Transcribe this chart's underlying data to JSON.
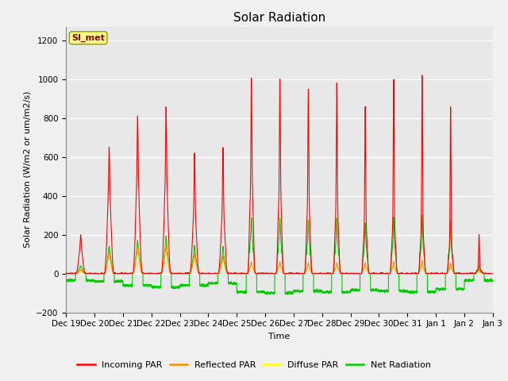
{
  "title": "Solar Radiation",
  "ylabel": "Solar Radiation (W/m2 or um/m2/s)",
  "xlabel": "Time",
  "ylim": [
    -200,
    1270
  ],
  "yticks": [
    -200,
    0,
    200,
    400,
    600,
    800,
    1000,
    1200
  ],
  "colors": {
    "incoming": "#FF0000",
    "reflected": "#FF8C00",
    "diffuse": "#FFFF00",
    "net": "#00CC00"
  },
  "legend_labels": [
    "Incoming PAR",
    "Reflected PAR",
    "Diffuse PAR",
    "Net Radiation"
  ],
  "station_label": "SI_met",
  "n_days": 15,
  "pts_per_day": 288,
  "day_peaks_incoming": [
    200,
    650,
    810,
    860,
    620,
    650,
    1010,
    1000,
    950,
    980,
    860,
    1000,
    1020,
    860,
    200
  ],
  "day_peaks_reflected": [
    20,
    110,
    140,
    150,
    100,
    90,
    60,
    60,
    55,
    55,
    55,
    60,
    65,
    55,
    20
  ],
  "day_peaks_diffuse": [
    15,
    100,
    130,
    140,
    90,
    85,
    50,
    50,
    45,
    45,
    45,
    50,
    55,
    45,
    15
  ],
  "day_peaks_net": [
    40,
    140,
    170,
    195,
    145,
    140,
    290,
    285,
    275,
    285,
    260,
    290,
    300,
    270,
    40
  ],
  "night_net": [
    -35,
    -40,
    -60,
    -70,
    -60,
    -50,
    -95,
    -100,
    -90,
    -95,
    -85,
    -90,
    -95,
    -80,
    -35
  ],
  "title_fontsize": 11,
  "label_fontsize": 8,
  "tick_fontsize": 7.5,
  "bg_light": "#F0F0F0",
  "bg_plot": "#E8E8E8",
  "grid_color": "#FFFFFF"
}
